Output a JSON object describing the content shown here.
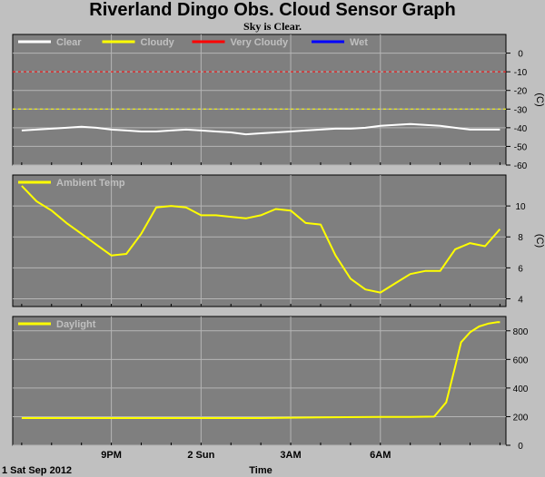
{
  "title": "Riverland Dingo Obs. Cloud Sensor Graph",
  "subtitle": "Sky is Clear.",
  "x_label": "Time",
  "footer_date": "1 Sat Sep 2012",
  "chart_data": [
    {
      "type": "line",
      "name": "cloud-panel",
      "legend": [
        {
          "label": "Clear",
          "color": "#ffffff"
        },
        {
          "label": "Cloudy",
          "color": "#ffff00"
        },
        {
          "label": "Very Cloudy",
          "color": "#ff0000"
        },
        {
          "label": "Wet",
          "color": "#0000ff"
        }
      ],
      "unit": "(C)",
      "ylim": [
        -60,
        10
      ],
      "yticks": [
        "0",
        "-10",
        "-20",
        "-30",
        "-40",
        "-50",
        "-60"
      ],
      "ytick_values": [
        0,
        -10,
        -20,
        -30,
        -40,
        -50,
        -60
      ],
      "thresholds": [
        {
          "label": "Very Cloudy",
          "value": -10,
          "color": "#ff0000"
        },
        {
          "label": "Cloudy",
          "value": -30,
          "color": "#ffff00"
        }
      ],
      "series": [
        {
          "name": "Clear",
          "color": "#ffffff",
          "x": [
            0,
            0.5,
            1,
            1.5,
            2,
            2.5,
            3,
            3.5,
            4,
            4.5,
            5,
            5.5,
            6,
            6.5,
            7,
            7.5,
            8,
            8.5,
            9,
            9.5,
            10,
            10.5,
            11,
            11.5,
            12,
            12.5,
            13,
            13.5,
            14,
            14.5,
            15,
            15.5,
            16
          ],
          "y": [
            -41.5,
            -41,
            -40.5,
            -40,
            -39.5,
            -40,
            -41,
            -41.5,
            -42,
            -42,
            -41.5,
            -41,
            -41.5,
            -42,
            -42.5,
            -43.5,
            -43,
            -42.5,
            -42,
            -41.5,
            -41,
            -40.5,
            -40.5,
            -40,
            -39,
            -38.5,
            -38,
            -38.5,
            -39,
            -40,
            -41,
            -41,
            -41
          ]
        }
      ]
    },
    {
      "type": "line",
      "name": "ambient-panel",
      "legend": [
        {
          "label": "Ambient Temp",
          "color": "#ffff00"
        }
      ],
      "unit": "(C)",
      "ylim": [
        3.5,
        12
      ],
      "yticks": [
        "10",
        "8",
        "6",
        "4"
      ],
      "ytick_values": [
        10,
        8,
        6,
        4
      ],
      "series": [
        {
          "name": "Ambient Temp",
          "color": "#ffff00",
          "x": [
            0,
            0.5,
            1,
            1.5,
            2,
            2.5,
            3,
            3.5,
            4,
            4.5,
            5,
            5.5,
            6,
            6.5,
            7,
            7.5,
            8,
            8.5,
            9,
            9.5,
            10,
            10.5,
            11,
            11.5,
            12,
            12.5,
            13,
            13.5,
            14,
            14.5,
            15,
            15.5,
            16
          ],
          "y": [
            11.3,
            10.3,
            9.7,
            8.9,
            8.2,
            7.5,
            6.8,
            6.9,
            8.2,
            9.9,
            10.0,
            9.9,
            9.4,
            9.4,
            9.3,
            9.2,
            9.4,
            9.8,
            9.7,
            8.9,
            8.8,
            6.8,
            5.3,
            4.6,
            4.4,
            5.0,
            5.6,
            5.8,
            5.8,
            7.2,
            7.6,
            7.4,
            8.5
          ]
        }
      ]
    },
    {
      "type": "line",
      "name": "daylight-panel",
      "legend": [
        {
          "label": "Daylight",
          "color": "#ffff00"
        }
      ],
      "ylim": [
        0,
        900
      ],
      "yticks": [
        "800",
        "600",
        "400",
        "200",
        "0"
      ],
      "ytick_values": [
        800,
        600,
        400,
        200,
        0
      ],
      "series": [
        {
          "name": "Daylight",
          "color": "#ffff00",
          "x": [
            0,
            2,
            4,
            6,
            8,
            10,
            12,
            13,
            13.8,
            14.2,
            14.5,
            14.7,
            15,
            15.3,
            15.6,
            15.9,
            16
          ],
          "y": [
            190,
            190,
            190,
            190,
            190,
            195,
            198,
            198,
            200,
            300,
            550,
            720,
            790,
            830,
            850,
            860,
            860
          ]
        }
      ]
    }
  ],
  "x_ticks": [
    {
      "label": "9PM",
      "x": 3
    },
    {
      "label": "2 Sun",
      "x": 6
    },
    {
      "label": "3AM",
      "x": 9
    },
    {
      "label": "6AM",
      "x": 12
    }
  ],
  "x_range": [
    -0.3,
    16.2
  ],
  "x_ticks_minor": [
    0,
    1,
    2,
    3,
    4,
    5,
    6,
    7,
    8,
    9,
    10,
    11,
    12,
    13,
    14,
    15,
    16
  ]
}
